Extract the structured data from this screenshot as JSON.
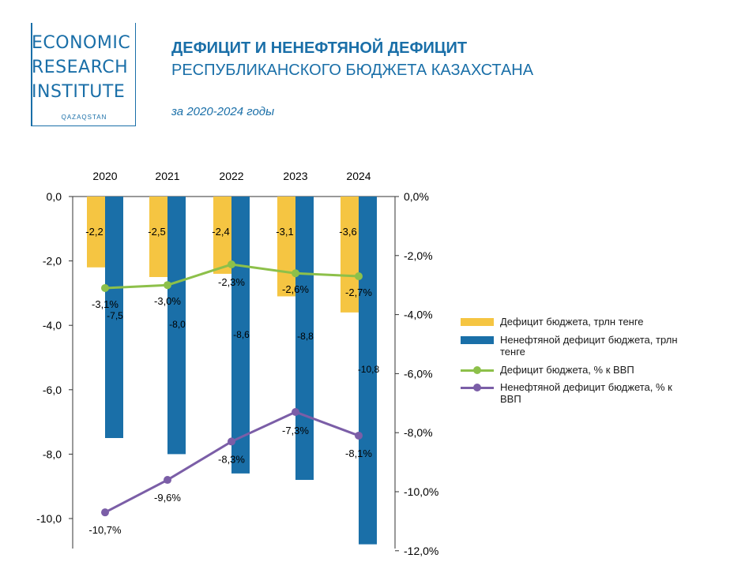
{
  "logo": {
    "line1": "ECONOMIC",
    "line2": "RESEARCH",
    "line3": "INSTITUTE",
    "sub": "QAZAQSTAN"
  },
  "header": {
    "title_bold": "ДЕФИЦИТ И НЕНЕФТЯНОЙ ДЕФИЦИТ",
    "title_regular": "РЕСПУБЛИКАНСКОГО БЮДЖЕТА КАЗАХСТАНА",
    "subtitle": "за 2020-2024 годы"
  },
  "colors": {
    "deficit_bar": "#f5c542",
    "nonoil_bar": "#1a6fa8",
    "deficit_line": "#8dc04a",
    "nonoil_line": "#7b5ea7",
    "brand": "#1a6fa8"
  },
  "chart_data": {
    "type": "bar",
    "categories": [
      "2020",
      "2021",
      "2022",
      "2023",
      "2024"
    ],
    "series": [
      {
        "name": "Дефицит бюджета, трлн тенге",
        "kind": "bar",
        "axis": "left",
        "values": [
          -2.2,
          -2.5,
          -2.4,
          -3.1,
          -3.6
        ],
        "labels": [
          "-2,2",
          "-2,5",
          "-2,4",
          "-3,1",
          "-3,6"
        ]
      },
      {
        "name": "Ненефтяной дефицит бюджета, трлн тенге",
        "kind": "bar",
        "axis": "left",
        "values": [
          -7.5,
          -8.0,
          -8.6,
          -8.8,
          -10.8
        ],
        "labels": [
          "-7,5",
          "-8,0",
          "-8,6",
          "-8,8",
          "-10,8"
        ]
      },
      {
        "name": "Дефицит бюджета, % к ВВП",
        "kind": "line",
        "axis": "right",
        "values": [
          -3.1,
          -3.0,
          -2.3,
          -2.6,
          -2.7
        ],
        "labels": [
          "-3,1%",
          "-3,0%",
          "-2,3%",
          "-2,6%",
          "-2,7%"
        ]
      },
      {
        "name": "Ненефтяной дефицит бюджета, % к ВВП",
        "kind": "line",
        "axis": "right",
        "values": [
          -10.7,
          -9.6,
          -8.3,
          -7.3,
          -8.1
        ],
        "labels": [
          "-10,7%",
          "-9,6%",
          "-8,3%",
          "-7,3%",
          "-8,1%"
        ]
      }
    ],
    "y_left": {
      "ylim": [
        -10.8,
        0
      ],
      "ticks": [
        "0,0",
        "-2,0",
        "-4,0",
        "-6,0",
        "-8,0",
        "-10,0"
      ]
    },
    "y_right": {
      "ylim": [
        -12,
        0
      ],
      "ticks": [
        "0,0%",
        "-2,0%",
        "-4,0%",
        "-6,0%",
        "-8,0%",
        "-10,0%",
        "-12,0%"
      ]
    },
    "grid": false,
    "legend_position": "right"
  }
}
